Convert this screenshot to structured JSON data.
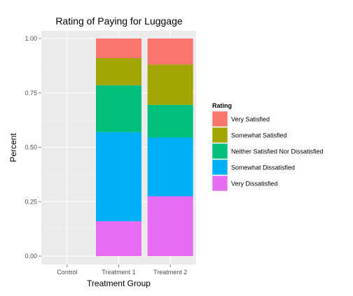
{
  "chart_data": {
    "type": "bar",
    "stacked": true,
    "title": "Rating of Paying for Luggage",
    "xlabel": "Treatment Group",
    "ylabel": "Percent",
    "ylim": [
      0,
      1
    ],
    "y_ticks": [
      "0.00",
      "0.25",
      "0.50",
      "0.75",
      "1.00"
    ],
    "categories": [
      "Control",
      "Treatment 1",
      "Treatment 2"
    ],
    "legend_title": "Rating",
    "legend_position": "right",
    "grid": true,
    "series": [
      {
        "name": "Very Satisfied",
        "color": "#F8766D",
        "values": [
          0,
          0.09,
          0.12
        ]
      },
      {
        "name": "Somewhat Satisfied",
        "color": "#A3A500",
        "values": [
          0,
          0.125,
          0.185
        ]
      },
      {
        "name": "Neither Satisfied Nor Dissatisfied",
        "color": "#00BF7D",
        "values": [
          0,
          0.215,
          0.15
        ]
      },
      {
        "name": "Somewhat Dissatisfied",
        "color": "#00B0F6",
        "values": [
          0,
          0.41,
          0.27
        ]
      },
      {
        "name": "Very Dissatisfied",
        "color": "#E76BF3",
        "values": [
          0,
          0.16,
          0.275
        ]
      }
    ]
  },
  "colors": {
    "panel_background": "#EBEBEB",
    "grid_major": "#FFFFFF",
    "grid_minor": "#F5F5F5"
  }
}
